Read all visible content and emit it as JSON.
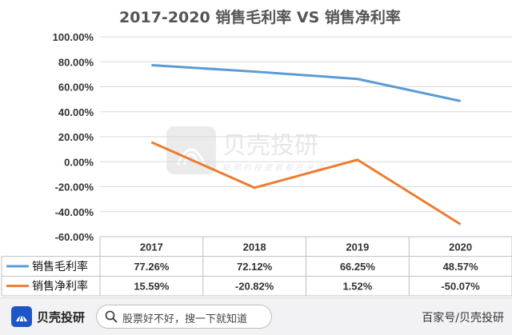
{
  "chart_data": {
    "type": "line",
    "title": "2017-2020 销售毛利率 VS 销售净利率",
    "categories": [
      "2017",
      "2018",
      "2019",
      "2020"
    ],
    "series": [
      {
        "name": "销售毛利率",
        "color": "#5b9bd5",
        "values": [
          77.26,
          72.12,
          66.25,
          48.57
        ],
        "labels": [
          "77.26%",
          "72.12%",
          "66.25%",
          "48.57%"
        ]
      },
      {
        "name": "销售净利率",
        "color": "#ed7d31",
        "values": [
          15.59,
          -20.82,
          1.52,
          -50.07
        ],
        "labels": [
          "15.59%",
          "-20.82%",
          "1.52%",
          "-50.07%"
        ]
      }
    ],
    "ylim": [
      -60,
      100
    ],
    "yticks": [
      100,
      80,
      60,
      40,
      20,
      0,
      -20,
      -40,
      -60
    ],
    "ytick_labels": [
      "100.00%",
      "80.00%",
      "60.00%",
      "40.00%",
      "20.00%",
      "0.00%",
      "-20.00%",
      "-40.00%",
      "-60.00%"
    ],
    "grid": true,
    "legend": "data-table-below",
    "xlabel": "",
    "ylabel": ""
  },
  "watermark": {
    "brand": "贝壳投研",
    "slogan": "聪明的投资者都在关注"
  },
  "bottom_bar": {
    "brand": "贝壳投研",
    "search_text": "股票好不好，搜一下就知道",
    "credit": "百家号/贝壳投研"
  },
  "icons": {
    "logo": "shell-logo-icon",
    "search": "search-icon"
  }
}
